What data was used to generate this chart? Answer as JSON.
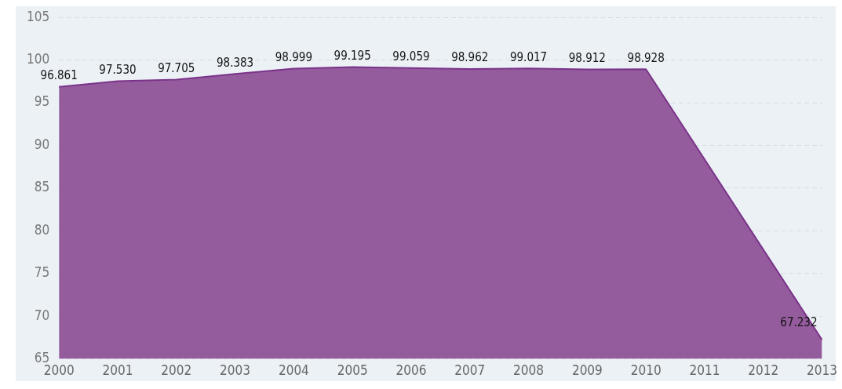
{
  "chart_data": {
    "type": "area",
    "categories": [
      "2000",
      "2001",
      "2002",
      "2003",
      "2004",
      "2005",
      "2006",
      "2007",
      "2008",
      "2009",
      "2010",
      "2011",
      "2012",
      "2013"
    ],
    "series": [
      {
        "color": "#955c9d",
        "values": [
          96.861,
          97.53,
          97.705,
          98.383,
          98.999,
          99.195,
          99.059,
          98.962,
          99.017,
          98.912,
          98.928,
          null,
          null,
          67.232
        ]
      }
    ],
    "value_labels": [
      "96.861",
      "97.530",
      "97.705",
      "98.383",
      "98.999",
      "99.195",
      "99.059",
      "98.962",
      "99.017",
      "98.912",
      "98.928",
      null,
      null,
      "67.232"
    ],
    "ylim": [
      65,
      105
    ],
    "yticks": [
      65,
      70,
      75,
      80,
      85,
      90,
      95,
      100,
      105
    ],
    "grid": "y",
    "legend": false
  }
}
